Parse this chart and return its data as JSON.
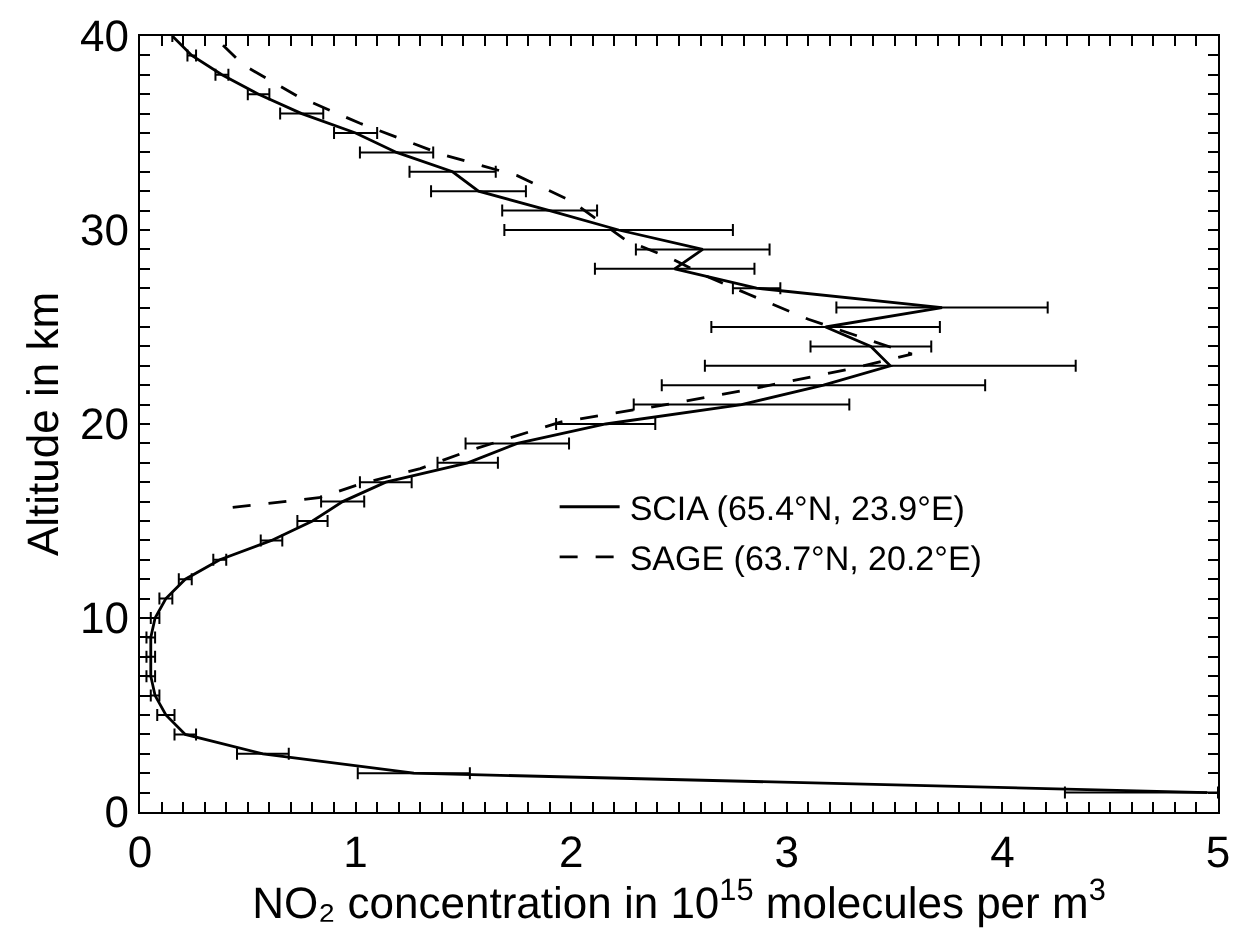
{
  "chart_data": {
    "type": "line",
    "xlabel": "NO₂ concentration in 10$^{15}$ molecules per m$^{3}$",
    "ylabel": "Altitude in km",
    "xlim": [
      0,
      5
    ],
    "ylim": [
      0,
      40
    ],
    "xticks": [
      0,
      {
        "value": 0.1,
        "label": null
      },
      {
        "value": 0.2,
        "label": null
      },
      {
        "value": 0.3,
        "label": null
      },
      {
        "value": 0.4,
        "label": null
      },
      {
        "value": 0.5,
        "label": null
      },
      {
        "value": 0.6,
        "label": null
      },
      {
        "value": 0.7,
        "label": null
      },
      {
        "value": 0.8,
        "label": null
      },
      {
        "value": 0.9,
        "label": null
      },
      1,
      {
        "value": 1.1,
        "label": null
      },
      {
        "value": 1.2,
        "label": null
      },
      {
        "value": 1.3,
        "label": null
      },
      {
        "value": 1.4,
        "label": null
      },
      {
        "value": 1.5,
        "label": null
      },
      {
        "value": 1.6,
        "label": null
      },
      {
        "value": 1.7,
        "label": null
      },
      {
        "value": 1.8,
        "label": null
      },
      {
        "value": 1.9,
        "label": null
      },
      2,
      {
        "value": 2.1,
        "label": null
      },
      {
        "value": 2.2,
        "label": null
      },
      {
        "value": 2.3,
        "label": null
      },
      {
        "value": 2.4,
        "label": null
      },
      {
        "value": 2.5,
        "label": null
      },
      {
        "value": 2.6,
        "label": null
      },
      {
        "value": 2.7,
        "label": null
      },
      {
        "value": 2.8,
        "label": null
      },
      {
        "value": 2.9,
        "label": null
      },
      3,
      {
        "value": 3.1,
        "label": null
      },
      {
        "value": 3.2,
        "label": null
      },
      {
        "value": 3.3,
        "label": null
      },
      {
        "value": 3.4,
        "label": null
      },
      {
        "value": 3.5,
        "label": null
      },
      {
        "value": 3.6,
        "label": null
      },
      {
        "value": 3.7,
        "label": null
      },
      {
        "value": 3.8,
        "label": null
      },
      {
        "value": 3.9,
        "label": null
      },
      4,
      {
        "value": 4.1,
        "label": null
      },
      {
        "value": 4.2,
        "label": null
      },
      {
        "value": 4.3,
        "label": null
      },
      {
        "value": 4.4,
        "label": null
      },
      {
        "value": 4.5,
        "label": null
      },
      {
        "value": 4.6,
        "label": null
      },
      {
        "value": 4.7,
        "label": null
      },
      {
        "value": 4.8,
        "label": null
      },
      {
        "value": 4.9,
        "label": null
      },
      5
    ],
    "yticks": [
      0,
      {
        "value": 1,
        "label": null
      },
      {
        "value": 2,
        "label": null
      },
      {
        "value": 3,
        "label": null
      },
      {
        "value": 4,
        "label": null
      },
      {
        "value": 5,
        "label": null
      },
      {
        "value": 6,
        "label": null
      },
      {
        "value": 7,
        "label": null
      },
      {
        "value": 8,
        "label": null
      },
      {
        "value": 9,
        "label": null
      },
      10,
      {
        "value": 11,
        "label": null
      },
      {
        "value": 12,
        "label": null
      },
      {
        "value": 13,
        "label": null
      },
      {
        "value": 14,
        "label": null
      },
      {
        "value": 15,
        "label": null
      },
      {
        "value": 16,
        "label": null
      },
      {
        "value": 17,
        "label": null
      },
      {
        "value": 18,
        "label": null
      },
      {
        "value": 19,
        "label": null
      },
      20,
      {
        "value": 21,
        "label": null
      },
      {
        "value": 22,
        "label": null
      },
      {
        "value": 23,
        "label": null
      },
      {
        "value": 24,
        "label": null
      },
      {
        "value": 25,
        "label": null
      },
      {
        "value": 26,
        "label": null
      },
      {
        "value": 27,
        "label": null
      },
      {
        "value": 28,
        "label": null
      },
      {
        "value": 29,
        "label": null
      },
      30,
      {
        "value": 31,
        "label": null
      },
      {
        "value": 32,
        "label": null
      },
      {
        "value": 33,
        "label": null
      },
      {
        "value": 34,
        "label": null
      },
      {
        "value": 35,
        "label": null
      },
      {
        "value": 36,
        "label": null
      },
      {
        "value": 37,
        "label": null
      },
      {
        "value": 38,
        "label": null
      },
      {
        "value": 39,
        "label": null
      },
      40
    ],
    "grid": false,
    "legend": "right",
    "marker": "none",
    "series": [
      {
        "name": "SCIA (65.4°N, 23.9°E)",
        "color": "#000000",
        "line_style": "solid",
        "x": [
          4.95,
          1.27,
          0.57,
          0.21,
          0.12,
          0.07,
          0.05,
          0.05,
          0.05,
          0.07,
          0.12,
          0.21,
          0.37,
          0.61,
          0.8,
          0.94,
          1.14,
          1.52,
          1.75,
          2.16,
          2.79,
          3.17,
          3.48,
          3.39,
          3.18,
          3.72,
          2.86,
          2.48,
          2.61,
          2.22,
          1.9,
          1.57,
          1.45,
          1.19,
          1.0,
          0.75,
          0.55,
          0.38,
          0.24,
          0.15
        ],
        "values": [
          1,
          2,
          3,
          4,
          5,
          6,
          7,
          8,
          9,
          10,
          11,
          12,
          13,
          14,
          15,
          16,
          17,
          18,
          19,
          20,
          21,
          22,
          23,
          24,
          25,
          26,
          27,
          28,
          29,
          30,
          31,
          32,
          33,
          34,
          35,
          36,
          37,
          38,
          39,
          40
        ],
        "xerrors": [
          [
            4.29,
            5.0
          ],
          [
            1.01,
            1.53
          ],
          0.12,
          0.05,
          0.04,
          0.02,
          0.02,
          0.02,
          0.02,
          0.02,
          0.03,
          0.03,
          0.03,
          0.05,
          0.07,
          0.1,
          0.12,
          0.14,
          0.24,
          0.23,
          0.5,
          0.75,
          0.86,
          0.28,
          0.53,
          0.49,
          0.11,
          0.37,
          0.31,
          0.53,
          0.22,
          0.22,
          0.2,
          0.17,
          0.1,
          0.1,
          0.05,
          0.03,
          0.02,
          null
        ]
      },
      {
        "name": "SAGE (63.7°N, 20.2°E)",
        "color": "#000000",
        "line_style": "dashed",
        "x": [
          0.43,
          0.83,
          1.02,
          1.3,
          1.52,
          1.95,
          2.44,
          2.88,
          3.32,
          3.58,
          3.39,
          3.1,
          2.82,
          2.63,
          2.47,
          2.25,
          2.0,
          1.75,
          1.4,
          1.02,
          0.73,
          0.48,
          0.36
        ],
        "values": [
          15.7,
          16.2,
          16.9,
          17.7,
          18.6,
          20.1,
          21.0,
          21.9,
          22.9,
          23.6,
          24.3,
          25.4,
          26.7,
          27.6,
          28.5,
          29.5,
          31.5,
          32.8,
          33.9,
          35.5,
          36.9,
          38.5,
          39.8
        ]
      }
    ]
  }
}
